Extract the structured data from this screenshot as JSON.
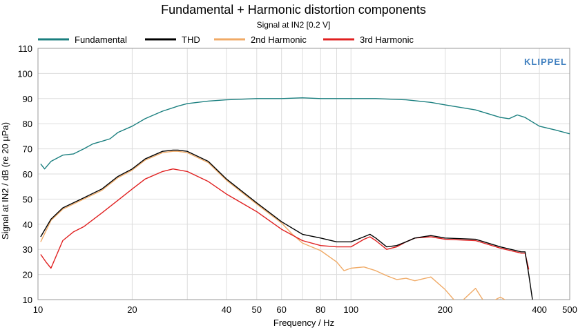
{
  "chart_data": {
    "type": "line",
    "title": "Fundamental + Harmonic distortion components",
    "subtitle": "Signal at IN2 [0.2 V]",
    "xlabel": "Frequency / Hz",
    "ylabel": "Signal at IN2 / dB (re 20 µPa)",
    "x_scale": "log",
    "xlim": [
      10,
      500
    ],
    "ylim": [
      10,
      110
    ],
    "x_ticks": [
      10,
      20,
      40,
      50,
      60,
      80,
      100,
      200,
      400,
      500
    ],
    "x_tick_labels": [
      "10",
      "20",
      "40",
      "50",
      "60",
      "80",
      "100",
      "200",
      "400",
      "500"
    ],
    "y_ticks": [
      10,
      20,
      30,
      40,
      50,
      60,
      70,
      80,
      90,
      100,
      110
    ],
    "y_tick_labels": [
      "10",
      "20",
      "30",
      "40",
      "50",
      "60",
      "70",
      "80",
      "90",
      "100",
      "110"
    ],
    "grid": true,
    "legend_position": "top",
    "brand": "KLIPPEL",
    "series": [
      {
        "name": "Fundamental",
        "color": "#1a7f7f",
        "points": [
          [
            10.2,
            64
          ],
          [
            10.5,
            62
          ],
          [
            11,
            65
          ],
          [
            12,
            67.5
          ],
          [
            13,
            68
          ],
          [
            14,
            70
          ],
          [
            15,
            72
          ],
          [
            16,
            73
          ],
          [
            17,
            74
          ],
          [
            18,
            76.5
          ],
          [
            20,
            79
          ],
          [
            22,
            82
          ],
          [
            25,
            85
          ],
          [
            28,
            87
          ],
          [
            30,
            88
          ],
          [
            35,
            89
          ],
          [
            40,
            89.5
          ],
          [
            50,
            90
          ],
          [
            60,
            90
          ],
          [
            70,
            90.3
          ],
          [
            80,
            90
          ],
          [
            100,
            90
          ],
          [
            120,
            90
          ],
          [
            150,
            89.5
          ],
          [
            180,
            88.5
          ],
          [
            200,
            87.5
          ],
          [
            250,
            85.5
          ],
          [
            300,
            82.5
          ],
          [
            320,
            82
          ],
          [
            340,
            83.5
          ],
          [
            360,
            82.5
          ],
          [
            400,
            79
          ],
          [
            450,
            77.5
          ],
          [
            500,
            76
          ]
        ]
      },
      {
        "name": "THD",
        "color": "#000000",
        "points": [
          [
            10.2,
            35
          ],
          [
            11,
            42
          ],
          [
            12,
            46.5
          ],
          [
            14,
            50.5
          ],
          [
            16,
            54
          ],
          [
            18,
            59
          ],
          [
            20,
            62
          ],
          [
            22,
            66
          ],
          [
            25,
            69
          ],
          [
            27,
            69.5
          ],
          [
            28,
            69.5
          ],
          [
            30,
            69
          ],
          [
            35,
            65
          ],
          [
            40,
            58
          ],
          [
            50,
            48.5
          ],
          [
            60,
            41
          ],
          [
            70,
            36
          ],
          [
            80,
            34.5
          ],
          [
            90,
            33
          ],
          [
            100,
            33
          ],
          [
            110,
            35
          ],
          [
            115,
            36
          ],
          [
            120,
            34.5
          ],
          [
            130,
            31
          ],
          [
            140,
            31.5
          ],
          [
            150,
            33
          ],
          [
            160,
            34.5
          ],
          [
            180,
            35.5
          ],
          [
            200,
            34.5
          ],
          [
            250,
            34
          ],
          [
            300,
            31
          ],
          [
            350,
            29
          ],
          [
            360,
            29
          ],
          [
            370,
            20
          ],
          [
            380,
            10
          ]
        ]
      },
      {
        "name": "2nd Harmonic",
        "color": "#f0aa66",
        "points": [
          [
            10.2,
            33
          ],
          [
            11,
            41.5
          ],
          [
            12,
            46
          ],
          [
            14,
            50
          ],
          [
            16,
            53.5
          ],
          [
            18,
            58.5
          ],
          [
            20,
            61.5
          ],
          [
            22,
            65.5
          ],
          [
            25,
            68.5
          ],
          [
            27,
            69
          ],
          [
            28,
            69
          ],
          [
            30,
            68.5
          ],
          [
            35,
            64.5
          ],
          [
            40,
            57.5
          ],
          [
            50,
            48
          ],
          [
            60,
            40.5
          ],
          [
            65,
            36
          ],
          [
            70,
            32.5
          ],
          [
            80,
            29.5
          ],
          [
            90,
            25
          ],
          [
            95,
            21.5
          ],
          [
            100,
            22.5
          ],
          [
            110,
            23
          ],
          [
            120,
            21.5
          ],
          [
            130,
            19.5
          ],
          [
            140,
            18
          ],
          [
            150,
            18.5
          ],
          [
            160,
            17.5
          ],
          [
            180,
            19
          ],
          [
            200,
            14
          ],
          [
            220,
            8
          ],
          [
            250,
            14.5
          ],
          [
            270,
            8
          ],
          [
            300,
            11
          ],
          [
            320,
            9
          ]
        ]
      },
      {
        "name": "3rd Harmonic",
        "color": "#e02020",
        "points": [
          [
            10.2,
            28
          ],
          [
            10.6,
            25
          ],
          [
            11,
            22.5
          ],
          [
            12,
            33.5
          ],
          [
            13,
            37
          ],
          [
            14,
            39
          ],
          [
            16,
            44.5
          ],
          [
            18,
            49.5
          ],
          [
            20,
            54
          ],
          [
            22,
            58
          ],
          [
            25,
            61
          ],
          [
            27,
            62
          ],
          [
            30,
            61
          ],
          [
            35,
            57
          ],
          [
            40,
            52
          ],
          [
            50,
            45
          ],
          [
            60,
            38
          ],
          [
            70,
            33.5
          ],
          [
            80,
            31.5
          ],
          [
            90,
            31
          ],
          [
            100,
            31
          ],
          [
            110,
            34
          ],
          [
            115,
            35
          ],
          [
            120,
            33.5
          ],
          [
            130,
            30
          ],
          [
            140,
            31
          ],
          [
            150,
            33
          ],
          [
            160,
            34.5
          ],
          [
            180,
            35
          ],
          [
            200,
            34
          ],
          [
            250,
            33.5
          ],
          [
            300,
            30.5
          ],
          [
            350,
            28.5
          ],
          [
            360,
            28.5
          ],
          [
            370,
            22
          ]
        ]
      }
    ]
  }
}
